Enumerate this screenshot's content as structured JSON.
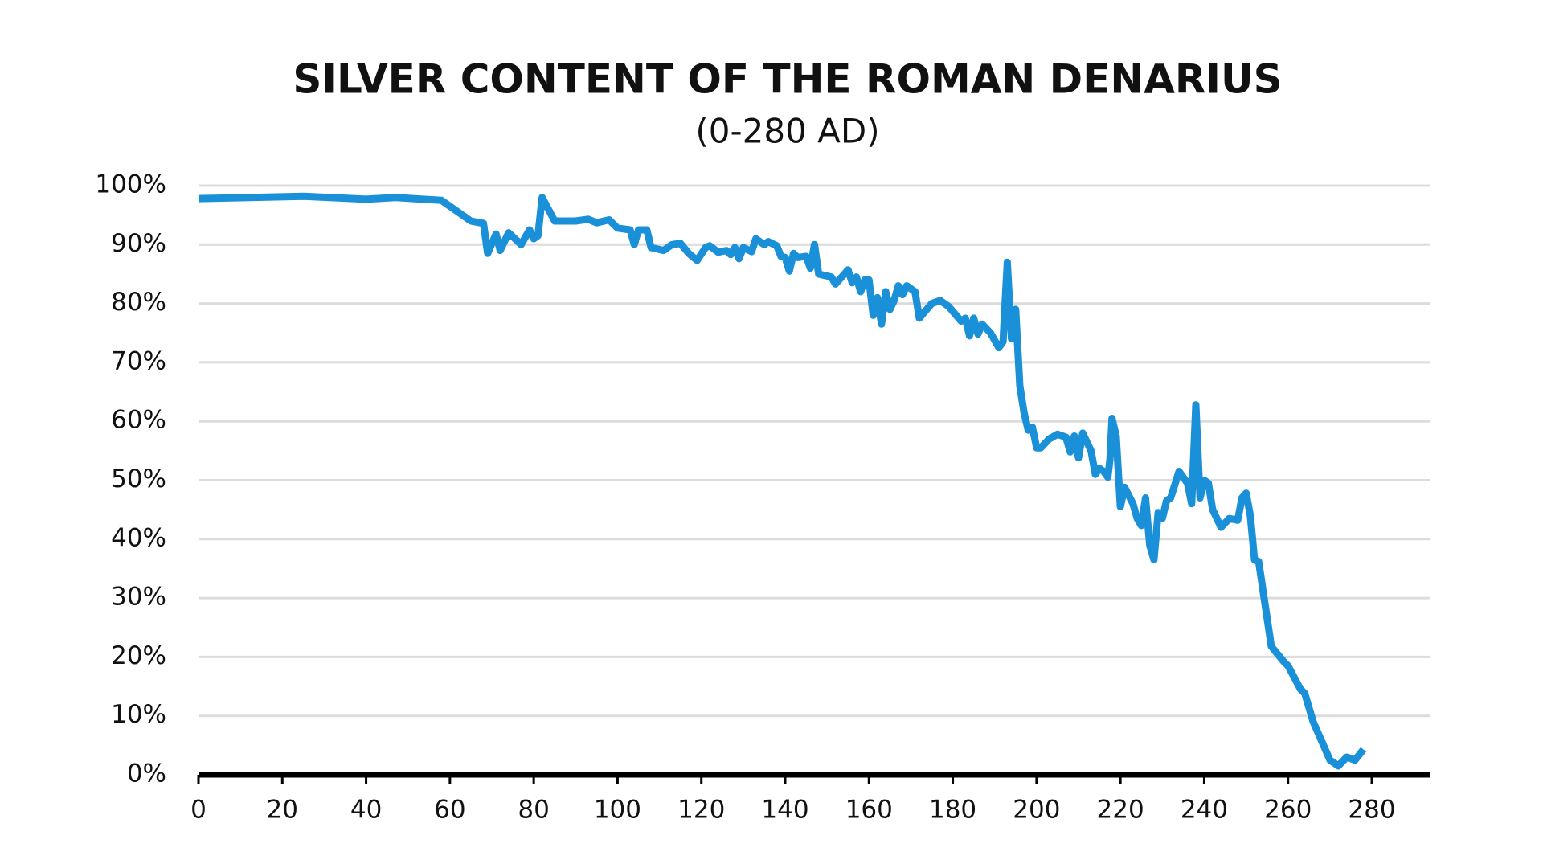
{
  "chart_data": {
    "type": "line",
    "title": "SILVER CONTENT OF THE ROMAN DENARIUS",
    "subtitle": "(0-280 AD)",
    "x": [
      0,
      25,
      40,
      47,
      58,
      65,
      68,
      69,
      71,
      72,
      74,
      77,
      79,
      80,
      81,
      82,
      85,
      90,
      93,
      95,
      98,
      100,
      103,
      104,
      105,
      107,
      108,
      111,
      113,
      115,
      117,
      119,
      121,
      122,
      124,
      126,
      127,
      128,
      129,
      130,
      132,
      133,
      135,
      136,
      138,
      139,
      140,
      141,
      142,
      143,
      145,
      146,
      147,
      148,
      151,
      152,
      155,
      156,
      157,
      158,
      159,
      160,
      161,
      162,
      163,
      164,
      165,
      166,
      167,
      168,
      169,
      171,
      172,
      175,
      177,
      179,
      182,
      183,
      184,
      185,
      186,
      187,
      189,
      191,
      192,
      193,
      194,
      195,
      196,
      197,
      198,
      199,
      200,
      201,
      203,
      205,
      207,
      208,
      209,
      210,
      211,
      213,
      214,
      215,
      216,
      217,
      217.5,
      218,
      219,
      220,
      221,
      223,
      224,
      225,
      226,
      227,
      228,
      229,
      230,
      231,
      232,
      234,
      236,
      237,
      238,
      239,
      240,
      241,
      242,
      244,
      246,
      248,
      249,
      250,
      251,
      252,
      253,
      256,
      259,
      260,
      263,
      264,
      266,
      270,
      272,
      274,
      276,
      278
    ],
    "series": [
      {
        "name": "Silver content",
        "color": "#1a90d9",
        "values": [
          97.8,
          98.2,
          97.7,
          98,
          97.5,
          94,
          93.6,
          88.5,
          91.8,
          89,
          92,
          90,
          92.5,
          91,
          91.5,
          98,
          94,
          94,
          94.3,
          93.7,
          94.2,
          92.8,
          92.5,
          90,
          92.5,
          92.5,
          89.5,
          89,
          90,
          90.2,
          88.5,
          87.3,
          89.5,
          89.8,
          88.7,
          89,
          88.3,
          89.5,
          87.6,
          89.5,
          88.8,
          91,
          90,
          90.5,
          89.8,
          88,
          87.8,
          85.5,
          88.5,
          87.8,
          88,
          86,
          90,
          85,
          84.5,
          83.3,
          85.7,
          83.5,
          84.5,
          82,
          84,
          84,
          78,
          81,
          76.5,
          82,
          79,
          80.5,
          83,
          81.5,
          83,
          82,
          77.5,
          80,
          80.5,
          79.5,
          77,
          77.5,
          74.5,
          77.5,
          74.8,
          76.5,
          75,
          72.5,
          73.5,
          87,
          74,
          79,
          66,
          61.5,
          58.5,
          59,
          55.5,
          55.5,
          57,
          57.8,
          57.3,
          54.8,
          57.5,
          53.8,
          58,
          55,
          51,
          52,
          51.5,
          50.5,
          53.5,
          60.5,
          57.5,
          45.5,
          48.8,
          46,
          43.5,
          42.3,
          47,
          39,
          36.5,
          44.5,
          43.5,
          46.5,
          47,
          51.5,
          49.5,
          46,
          62.8,
          47,
          50,
          49.5,
          45,
          42,
          43.5,
          43.2,
          47,
          47.8,
          44,
          36.5,
          36.2,
          21.8,
          19.2,
          18.5,
          14.5,
          13.8,
          9,
          2.5,
          1.5,
          3,
          2.5,
          4.3
        ]
      }
    ],
    "xlim": [
      0,
      294
    ],
    "xticks": [
      0,
      20,
      40,
      60,
      80,
      100,
      120,
      140,
      160,
      180,
      200,
      220,
      240,
      260,
      280
    ],
    "ylim": [
      0,
      100
    ],
    "yticks": [
      {
        "value": 0,
        "label": "0%"
      },
      {
        "value": 10,
        "label": "10%"
      },
      {
        "value": 20,
        "label": "20%"
      },
      {
        "value": 30,
        "label": "30%"
      },
      {
        "value": 40,
        "label": "40%"
      },
      {
        "value": 50,
        "label": "50%"
      },
      {
        "value": 60,
        "label": "60%"
      },
      {
        "value": 70,
        "label": "70%"
      },
      {
        "value": 80,
        "label": "80%"
      },
      {
        "value": 90,
        "label": "90%"
      },
      {
        "value": 100,
        "label": "100%"
      }
    ],
    "grid": true
  }
}
